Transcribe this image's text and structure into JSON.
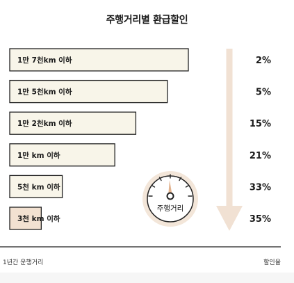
{
  "chart_data": {
    "type": "bar",
    "title": "주행거리별 환급할인",
    "categories": [
      "1만 7천km 이하",
      "1만 5천km 이하",
      "1만 2천km 이하",
      "1만 km 이하",
      "5천 km 이하",
      "3천 km 이하"
    ],
    "values": [
      2,
      5,
      15,
      21,
      33,
      35
    ],
    "value_labels": [
      "2%",
      "5%",
      "15%",
      "21%",
      "33%",
      "35%"
    ],
    "bar_lengths_km": [
      17000,
      15000,
      12000,
      10000,
      5000,
      3000
    ],
    "xlabel": "1년간 운행거리",
    "ylabel": "할인율",
    "icon_label": "주행거리",
    "colors": {
      "bar_fill": "#f8f5e9",
      "bar_highlight": "#f2e1d1",
      "bar_stroke": "#222222",
      "arrow": "#f1e1d3",
      "gauge_bg": "#f3e6d9",
      "gauge_needle": "#e2b38f"
    },
    "grid": false
  }
}
